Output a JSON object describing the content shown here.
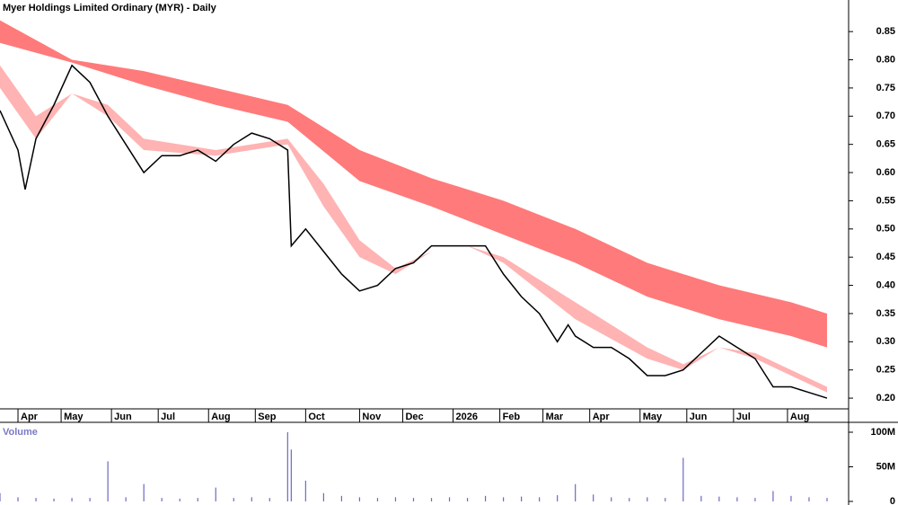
{
  "chart_data": [
    {
      "type": "price",
      "title": "Myer Holdings Limited Ordinary (MYR) - Daily",
      "xlim": [
        0,
        236
      ],
      "ylim": [
        0.181,
        0.906
      ],
      "xticks": [
        {
          "value": 5,
          "label": "Apr"
        },
        {
          "value": 17,
          "label": "May"
        },
        {
          "value": 31,
          "label": "Jun"
        },
        {
          "value": 44,
          "label": "Jul"
        },
        {
          "value": 58,
          "label": "Aug"
        },
        {
          "value": 71,
          "label": "Sep"
        },
        {
          "value": 85,
          "label": "Oct"
        },
        {
          "value": 100,
          "label": "Nov"
        },
        {
          "value": 112,
          "label": "Dec"
        },
        {
          "value": 126,
          "label": "2026"
        },
        {
          "value": 139,
          "label": "Feb"
        },
        {
          "value": 151,
          "label": "Mar"
        },
        {
          "value": 164,
          "label": "Apr"
        },
        {
          "value": 178,
          "label": "May"
        },
        {
          "value": 191,
          "label": "Jun"
        },
        {
          "value": 204,
          "label": "Jul"
        },
        {
          "value": 219,
          "label": "Aug"
        }
      ],
      "yticks": [
        {
          "value": 0.2,
          "label": "0.20"
        },
        0.25,
        {
          "value": 0.3,
          "label": "0.30"
        },
        0.35,
        {
          "value": 0.4,
          "label": "0.40"
        },
        0.45,
        {
          "value": 0.5,
          "label": "0.50"
        },
        0.55,
        {
          "value": 0.6,
          "label": "0.60"
        },
        0.65,
        {
          "value": 0.7,
          "label": "0.70"
        },
        0.75,
        {
          "value": 0.8,
          "label": "0.80"
        },
        0.85
      ],
      "x": [
        0,
        5,
        7,
        10,
        15,
        20,
        25,
        30,
        35,
        40,
        45,
        50,
        55,
        60,
        65,
        70,
        75,
        80,
        81,
        85,
        90,
        95,
        100,
        105,
        110,
        115,
        120,
        125,
        130,
        135,
        140,
        145,
        150,
        155,
        158,
        160,
        165,
        170,
        175,
        180,
        185,
        190,
        195,
        200,
        205,
        210,
        215,
        220,
        225,
        230
      ],
      "values": [
        0.71,
        0.64,
        0.57,
        0.66,
        0.72,
        0.79,
        0.76,
        0.7,
        0.65,
        0.6,
        0.63,
        0.63,
        0.64,
        0.62,
        0.65,
        0.67,
        0.66,
        0.64,
        0.47,
        0.5,
        0.46,
        0.42,
        0.39,
        0.4,
        0.43,
        0.44,
        0.47,
        0.47,
        0.47,
        0.47,
        0.42,
        0.38,
        0.35,
        0.3,
        0.33,
        0.31,
        0.29,
        0.29,
        0.27,
        0.24,
        0.24,
        0.25,
        0.28,
        0.31,
        0.29,
        0.27,
        0.22,
        0.22,
        0.21,
        0.2
      ],
      "color": "#000000",
      "bands": [
        {
          "color": "#ff7a7a",
          "x": [
            0,
            20,
            40,
            60,
            80,
            100,
            120,
            140,
            160,
            180,
            200,
            220,
            230
          ],
          "upper": [
            0.87,
            0.8,
            0.78,
            0.75,
            0.72,
            0.64,
            0.59,
            0.55,
            0.5,
            0.44,
            0.4,
            0.37,
            0.35
          ],
          "lower": [
            0.83,
            0.795,
            0.755,
            0.72,
            0.69,
            0.585,
            0.54,
            0.49,
            0.44,
            0.38,
            0.34,
            0.31,
            0.29
          ]
        },
        {
          "color": "#ffb3b3",
          "x": [
            0,
            10,
            20,
            30,
            40,
            60,
            80,
            90,
            100,
            110,
            120,
            130,
            140,
            160,
            180,
            190,
            200,
            210,
            230
          ],
          "upper": [
            0.79,
            0.7,
            0.74,
            0.72,
            0.66,
            0.64,
            0.66,
            0.58,
            0.48,
            0.43,
            0.46,
            0.47,
            0.45,
            0.37,
            0.29,
            0.26,
            0.29,
            0.28,
            0.22
          ],
          "lower": [
            0.75,
            0.66,
            0.74,
            0.7,
            0.64,
            0.63,
            0.65,
            0.54,
            0.45,
            0.42,
            0.46,
            0.47,
            0.44,
            0.34,
            0.27,
            0.25,
            0.29,
            0.27,
            0.21
          ]
        }
      ]
    },
    {
      "type": "bar",
      "title": "Volume",
      "xlim": [
        0,
        236
      ],
      "ylim": [
        -2.6,
        111.7
      ],
      "yticks": [
        0,
        {
          "value": 50,
          "label": "50M"
        },
        {
          "value": 100,
          "label": "100M"
        }
      ],
      "x": [
        0,
        5,
        10,
        15,
        20,
        25,
        30,
        35,
        40,
        45,
        50,
        55,
        60,
        65,
        70,
        75,
        80,
        81,
        85,
        90,
        95,
        100,
        105,
        110,
        115,
        120,
        125,
        130,
        135,
        140,
        145,
        150,
        155,
        160,
        165,
        170,
        175,
        180,
        185,
        190,
        195,
        200,
        205,
        210,
        215,
        220,
        225,
        230
      ],
      "values": [
        12,
        6,
        5,
        4,
        5,
        5,
        58,
        6,
        25,
        5,
        4,
        5,
        20,
        5,
        6,
        5,
        100,
        75,
        30,
        12,
        8,
        6,
        5,
        6,
        5,
        5,
        6,
        5,
        8,
        6,
        7,
        6,
        9,
        25,
        10,
        6,
        5,
        6,
        5,
        63,
        8,
        7,
        6,
        5,
        15,
        8,
        6,
        5
      ],
      "color": "#6a6ac8"
    }
  ]
}
